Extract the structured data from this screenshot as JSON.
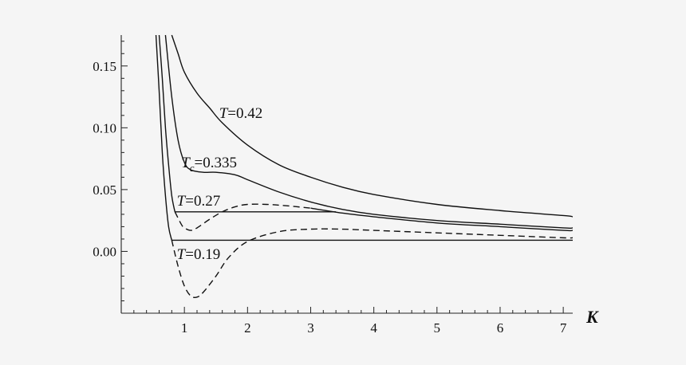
{
  "chart_data": {
    "type": "line",
    "title": "",
    "xlabel": "K",
    "ylabel": "",
    "xlim": [
      0,
      7.15
    ],
    "ylim": [
      -0.05,
      0.175
    ],
    "x_ticks": [
      1,
      2,
      3,
      4,
      5,
      6,
      7
    ],
    "x_tick_labels": [
      "1",
      "2",
      "3",
      "4",
      "5",
      "6",
      "7"
    ],
    "y_ticks": [
      0.0,
      0.05,
      0.1,
      0.15
    ],
    "y_tick_labels": [
      "0.00",
      "0.05",
      "0.10",
      "0.15"
    ],
    "grid": false,
    "annotations": [
      {
        "text": "T=0.42",
        "x": 1.55,
        "y": 0.108
      },
      {
        "text": "Tc=0.335",
        "x": 0.95,
        "y": 0.068
      },
      {
        "text": "T=0.27",
        "x": 0.88,
        "y": 0.037
      },
      {
        "text": "T=0.19",
        "x": 0.88,
        "y": -0.006
      }
    ],
    "series": [
      {
        "style": "solid",
        "x": [
          0.8,
          0.9,
          1.0,
          1.2,
          1.4,
          1.6,
          2.0,
          2.5,
          3.0,
          3.5,
          4.0,
          5.0,
          6.0,
          7.0,
          7.15
        ],
        "y": [
          0.175,
          0.16,
          0.145,
          0.128,
          0.116,
          0.104,
          0.086,
          0.07,
          0.06,
          0.052,
          0.046,
          0.038,
          0.033,
          0.029,
          0.028
        ]
      },
      {
        "style": "solid",
        "x": [
          0.7,
          0.8,
          0.9,
          1.0,
          1.1,
          1.3,
          1.5,
          1.8,
          2.0,
          2.5,
          3.0,
          3.5,
          4.0,
          5.0,
          6.0,
          7.0,
          7.15
        ],
        "y": [
          0.175,
          0.125,
          0.09,
          0.072,
          0.066,
          0.064,
          0.064,
          0.062,
          0.058,
          0.048,
          0.04,
          0.034,
          0.03,
          0.025,
          0.022,
          0.019,
          0.019
        ]
      },
      {
        "style": "solid",
        "x": [
          0.6,
          0.65,
          0.7,
          0.75,
          0.8,
          0.85
        ],
        "y": [
          0.175,
          0.14,
          0.1,
          0.07,
          0.045,
          0.032
        ]
      },
      {
        "style": "dashed",
        "x": [
          0.85,
          0.95,
          1.0,
          1.1,
          1.2,
          1.4,
          1.6,
          1.8,
          2.0,
          2.3,
          2.6,
          3.0
        ],
        "y": [
          0.032,
          0.022,
          0.019,
          0.017,
          0.019,
          0.026,
          0.032,
          0.036,
          0.038,
          0.038,
          0.037,
          0.035
        ]
      },
      {
        "style": "solid",
        "x": [
          3.0,
          3.5,
          4.0,
          5.0,
          6.0,
          7.0,
          7.15
        ],
        "y": [
          0.035,
          0.031,
          0.028,
          0.023,
          0.02,
          0.017,
          0.017
        ]
      },
      {
        "style": "plateau",
        "x": [
          0.85,
          3.4
        ],
        "y": [
          0.032,
          0.032
        ]
      },
      {
        "style": "solid",
        "x": [
          0.55,
          0.6,
          0.65,
          0.7,
          0.75,
          0.8
        ],
        "y": [
          0.175,
          0.13,
          0.08,
          0.045,
          0.02,
          0.009
        ]
      },
      {
        "style": "dashed",
        "x": [
          0.8,
          0.9,
          1.0,
          1.1,
          1.2,
          1.3,
          1.5,
          1.7,
          2.0,
          2.5,
          3.0,
          3.5,
          4.0,
          5.0,
          6.0,
          7.0,
          7.15
        ],
        "y": [
          0.009,
          -0.012,
          -0.028,
          -0.036,
          -0.037,
          -0.033,
          -0.02,
          -0.005,
          0.008,
          0.016,
          0.018,
          0.018,
          0.017,
          0.015,
          0.013,
          0.011,
          0.011
        ]
      },
      {
        "style": "plateau",
        "x": [
          0.8,
          7.15
        ],
        "y": [
          0.009,
          0.009
        ]
      }
    ]
  }
}
